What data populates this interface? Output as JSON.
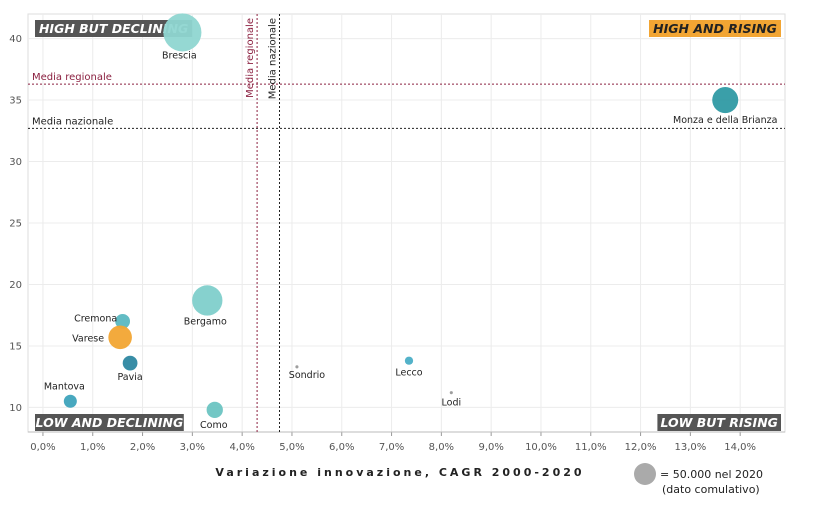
{
  "chart_data": {
    "type": "scatter",
    "xlabel": "Variazione innovazione, CAGR 2000-2020",
    "ylabel": "",
    "xlim": [
      -0.3,
      14.9
    ],
    "ylim": [
      8,
      42
    ],
    "x_ticks": [
      "0,0%",
      "1,0%",
      "2,0%",
      "3,0%",
      "4,0%",
      "5,0%",
      "6,0%",
      "7,0%",
      "8,0%",
      "9,0%",
      "10,0%",
      "11,0%",
      "12,0%",
      "13,0%",
      "14,0%"
    ],
    "y_ticks": [
      "10",
      "15",
      "20",
      "25",
      "30",
      "35",
      "40"
    ],
    "grid": true,
    "points": [
      {
        "name": "Brescia",
        "x": 2.8,
        "y": 40.5,
        "size": 3.0,
        "color": "#8fd6d1"
      },
      {
        "name": "Monza e della Brianza",
        "x": 13.7,
        "y": 35.0,
        "size": 1.4,
        "color": "#2f9aa4"
      },
      {
        "name": "Bergamo",
        "x": 3.3,
        "y": 18.7,
        "size": 1.9,
        "color": "#7fcfcb"
      },
      {
        "name": "Cremona",
        "x": 1.6,
        "y": 17.0,
        "size": 0.45,
        "color": "#5ab8c1"
      },
      {
        "name": "Varese",
        "x": 1.55,
        "y": 15.7,
        "size": 1.15,
        "color": "#f2a533"
      },
      {
        "name": "Pavia",
        "x": 1.75,
        "y": 13.6,
        "size": 0.45,
        "color": "#2d87a1"
      },
      {
        "name": "Mantova",
        "x": 0.55,
        "y": 10.5,
        "size": 0.35,
        "color": "#3ea3bc"
      },
      {
        "name": "Como",
        "x": 3.45,
        "y": 9.8,
        "size": 0.55,
        "color": "#6cc4c2"
      },
      {
        "name": "Lecco",
        "x": 7.35,
        "y": 13.8,
        "size": 0.14,
        "color": "#4aaec6"
      },
      {
        "name": "Sondrio",
        "x": 5.1,
        "y": 13.3,
        "size": 0.02,
        "color": "#999999"
      },
      {
        "name": "Lodi",
        "x": 8.2,
        "y": 11.2,
        "size": 0.02,
        "color": "#999999"
      }
    ],
    "reference_lines": [
      {
        "label": "Media regionale",
        "axis": "y",
        "value": 36.3,
        "color": "#8b2040"
      },
      {
        "label": "Media nazionale",
        "axis": "y",
        "value": 32.7,
        "color": "#222222"
      },
      {
        "label": "Media regionale",
        "axis": "x",
        "value": 4.3,
        "color": "#8b2040"
      },
      {
        "label": "Media nazionale",
        "axis": "x",
        "value": 4.75,
        "color": "#222222"
      }
    ],
    "quadrants": [
      {
        "text": "HIGH BUT DECLINING",
        "position": "top-left",
        "bg": "#555555",
        "fg": "#ffffff"
      },
      {
        "text": "HIGH AND RISING",
        "position": "top-right",
        "bg": "#f2a533",
        "fg": "#222222"
      },
      {
        "text": "LOW AND DECLINING",
        "position": "bottom-left",
        "bg": "#555555",
        "fg": "#ffffff"
      },
      {
        "text": "LOW BUT RISING",
        "position": "bottom-right",
        "bg": "#555555",
        "fg": "#ffffff"
      }
    ],
    "legend": {
      "text_line1": "= 50.000 nel 2020",
      "text_line2": "(dato comulativo)",
      "color": "#aaaaaa",
      "size": 1.0,
      "position": "bottom-right"
    }
  }
}
